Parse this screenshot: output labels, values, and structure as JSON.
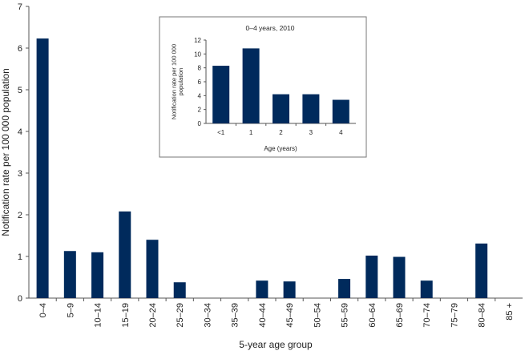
{
  "colors": {
    "bar": "#002a5c",
    "axis": "#555555"
  },
  "chart_data": [
    {
      "type": "bar",
      "title": "",
      "xlabel": "5-year age group",
      "ylabel": "Notification rate per 100 000 population",
      "ylim": [
        0,
        7
      ],
      "yticks": [
        "0",
        "1",
        "2",
        "3",
        "4",
        "5",
        "6",
        "7"
      ],
      "categories": [
        "0–4",
        "5–9",
        "10–14",
        "15–19",
        "20–24",
        "25–29",
        "30–34",
        "35–39",
        "40–44",
        "45–49",
        "50–54",
        "55–59",
        "60–64",
        "65–69",
        "70–74",
        "75–79",
        "80–84",
        "85 +"
      ],
      "values": [
        6.23,
        1.13,
        1.1,
        2.08,
        1.4,
        0.38,
        0,
        0,
        0.42,
        0.4,
        0,
        0.46,
        1.02,
        0.99,
        0.42,
        0,
        1.31,
        0
      ],
      "grid": false,
      "legend": "none"
    },
    {
      "type": "bar",
      "title": "0–4 years, 2010",
      "xlabel": "Age (years)",
      "ylabel": "Notification rate per 100 000 population",
      "ylim": [
        0,
        12
      ],
      "yticks": [
        "0",
        "2",
        "4",
        "6",
        "8",
        "10",
        "12"
      ],
      "categories": [
        "<1",
        "1",
        "2",
        "3",
        "4"
      ],
      "values": [
        8.3,
        10.8,
        4.2,
        4.2,
        3.4
      ],
      "grid": false,
      "legend": "none"
    }
  ]
}
